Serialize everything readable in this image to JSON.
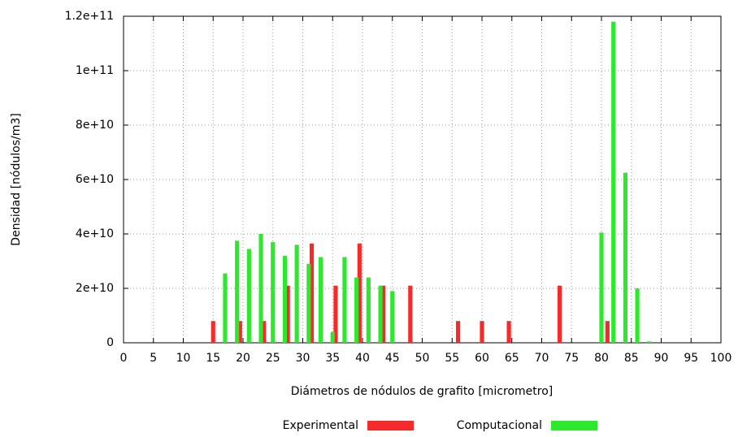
{
  "chart_data": {
    "type": "bar",
    "xlabel": "Diámetros de nódulos de grafito [micrometro]",
    "ylabel": "Densidad [nódulos/m3]",
    "series": [
      {
        "name": "Experimental",
        "color": "#f52a2a",
        "x": [
          15,
          19.5,
          23.5,
          27.5,
          31.5,
          35.5,
          39.5,
          43.5,
          48,
          56,
          60,
          64.5,
          73,
          81
        ],
        "values": [
          8000000000.0,
          8000000000.0,
          8000000000.0,
          21000000000.0,
          36500000000.0,
          21000000000.0,
          36500000000.0,
          21000000000.0,
          21000000000.0,
          8000000000.0,
          8000000000.0,
          8000000000.0,
          21000000000.0,
          8000000000.0
        ]
      },
      {
        "name": "Computacional",
        "color": "#2ee82e",
        "x": [
          17,
          19,
          21,
          23,
          25,
          27,
          29,
          31,
          33,
          35,
          37,
          39,
          41,
          43,
          45,
          80,
          82,
          84,
          86,
          88
        ],
        "values": [
          25500000000.0,
          37500000000.0,
          34500000000.0,
          40000000000.0,
          37000000000.0,
          32000000000.0,
          36000000000.0,
          29000000000.0,
          31500000000.0,
          4000000000.0,
          31500000000.0,
          24000000000.0,
          24000000000.0,
          21000000000.0,
          19000000000.0,
          40500000000.0,
          118000000000.0,
          62500000000.0,
          20000000000.0,
          500000000.0
        ]
      }
    ],
    "xlim": [
      0,
      100
    ],
    "xticks": [
      0,
      5,
      10,
      15,
      20,
      25,
      30,
      35,
      40,
      45,
      50,
      55,
      60,
      65,
      70,
      75,
      80,
      85,
      90,
      95,
      100
    ],
    "ylim": [
      0,
      120000000000.0
    ],
    "yticks": [
      0,
      {
        "value": 20000000000.0,
        "label": "2e+10"
      },
      {
        "value": 40000000000.0,
        "label": "4e+10"
      },
      {
        "value": 60000000000.0,
        "label": "6e+10"
      },
      {
        "value": 80000000000.0,
        "label": "8e+10"
      },
      {
        "value": 100000000000.0,
        "label": "1e+11"
      },
      {
        "value": 120000000000.0,
        "label": "1.2e+11"
      }
    ],
    "grid": true,
    "legend": "bottom"
  }
}
